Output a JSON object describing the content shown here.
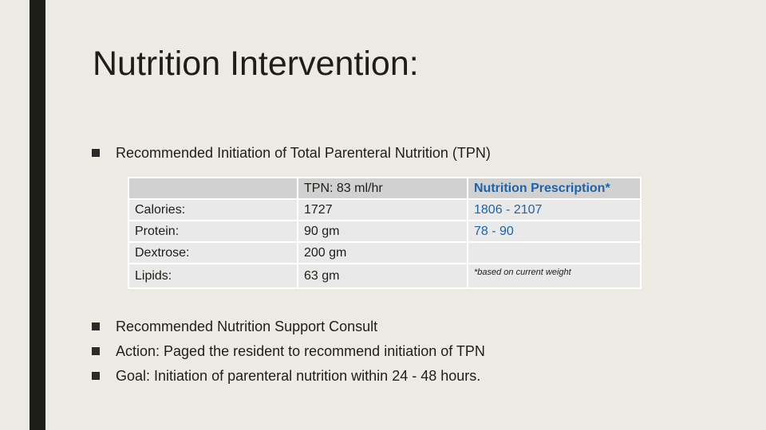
{
  "slide": {
    "title": "Nutrition Intervention:"
  },
  "bullets": {
    "intro": "Recommended Initiation of Total Parenteral Nutrition (TPN)",
    "consult": "Recommended Nutrition Support Consult",
    "action": "Action: Paged the resident to recommend initiation of TPN",
    "goal": "Goal: Initiation of parenteral nutrition within 24 - 48 hours."
  },
  "table": {
    "header": {
      "col0": "",
      "col1": "TPN: 83 ml/hr",
      "col2": "Nutrition Prescription*"
    },
    "rows": [
      {
        "label": "Calories:",
        "tpn": "1727",
        "rx": "1806 - 2107"
      },
      {
        "label": "Protein:",
        "tpn": "90 gm",
        "rx": "78 - 90"
      },
      {
        "label": "Dextrose:",
        "tpn": "200 gm",
        "rx": ""
      },
      {
        "label": "Lipids:",
        "tpn": "63 gm",
        "rx": "*based on current weight"
      }
    ]
  },
  "colors": {
    "background": "#edeae3",
    "accent_bar": "#1d1e15",
    "prescription_blue": "#1f63a6",
    "table_header": "#d1d1d1",
    "table_body": "#e9e9e9"
  }
}
